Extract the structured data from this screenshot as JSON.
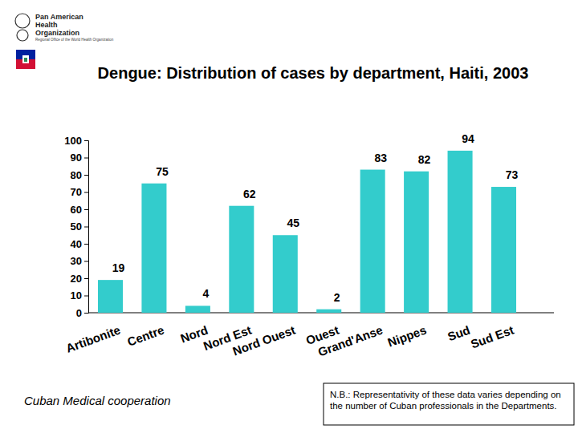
{
  "chart_data": {
    "type": "bar",
    "title": "Dengue: Distribution of cases by department, Haiti, 2003",
    "categories": [
      "Artibonite",
      "Centre",
      "Nord",
      "Nord Est",
      "Nord Ouest",
      "Ouest",
      "Grand'Anse",
      "Nippes",
      "Sud",
      "Sud Est"
    ],
    "values": [
      19,
      75,
      4,
      62,
      45,
      2,
      83,
      82,
      94,
      73
    ],
    "color": "#33cccc",
    "ylim": [
      0,
      100
    ],
    "yticks": [
      0,
      10,
      20,
      30,
      40,
      50,
      60,
      70,
      80,
      90,
      100
    ],
    "grid": false,
    "data_labels": true,
    "annotations": [
      "Cuban Medical cooperation",
      "N.B.: Representativity of these data varies depending on the number of Cuban professionals in the Departments."
    ]
  },
  "logo": {
    "lines": [
      "Pan American",
      "Health",
      "Organization"
    ],
    "subtitle": "Regional Office of the World Health Organization"
  }
}
